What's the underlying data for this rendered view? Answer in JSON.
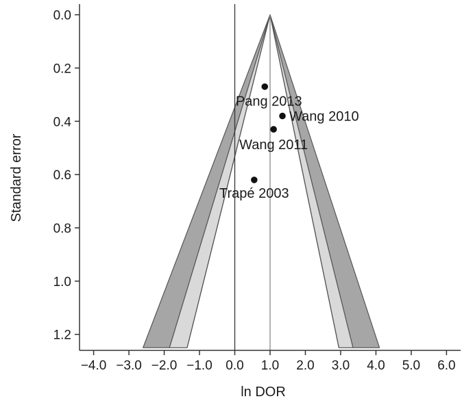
{
  "chart_data": {
    "type": "scatter",
    "subtype": "funnel-plot",
    "xlabel": "ln DOR",
    "ylabel": "Standard error",
    "xlim": [
      -4.4,
      6.4
    ],
    "ylim": [
      1.26,
      -0.04
    ],
    "y_inverted": true,
    "grid": false,
    "x_ticks": [
      -4.0,
      -3.0,
      -2.0,
      -1.0,
      0.0,
      1.0,
      2.0,
      3.0,
      4.0,
      5.0,
      6.0
    ],
    "x_tick_labels": [
      "−4.0",
      "−3.0",
      "−2.0",
      "−1.0",
      "0.0",
      "1.0",
      "2.0",
      "3.0",
      "4.0",
      "5.0",
      "6.0"
    ],
    "y_ticks": [
      0.0,
      0.2,
      0.4,
      0.6,
      0.8,
      1.0,
      1.2
    ],
    "y_tick_labels": [
      "0.0",
      "0.2",
      "0.4",
      "0.6",
      "0.8",
      "1.0",
      "1.2"
    ],
    "pooled_estimate": 1.0,
    "null_line": 0.0,
    "funnel": {
      "apex": [
        1.0,
        0.0
      ],
      "base_se": 1.25,
      "inner_band": [
        [
          -1.35,
          2.95
        ],
        [
          -1.85,
          3.35
        ]
      ],
      "outer_band": [
        [
          -1.85,
          3.35
        ],
        [
          -2.6,
          4.1
        ]
      ]
    },
    "points": [
      {
        "label": "Pang 2013",
        "x": 0.85,
        "y": 0.27
      },
      {
        "label": "Wang 2010",
        "x": 1.35,
        "y": 0.38
      },
      {
        "label": "Wang 2011",
        "x": 1.1,
        "y": 0.43
      },
      {
        "label": "Trapé 2003",
        "x": 0.55,
        "y": 0.62
      }
    ],
    "colors": {
      "outer_band": "#a6a6a6",
      "inner_band": "#d9d9d9",
      "lines": "#333333",
      "points": "#111111"
    }
  }
}
